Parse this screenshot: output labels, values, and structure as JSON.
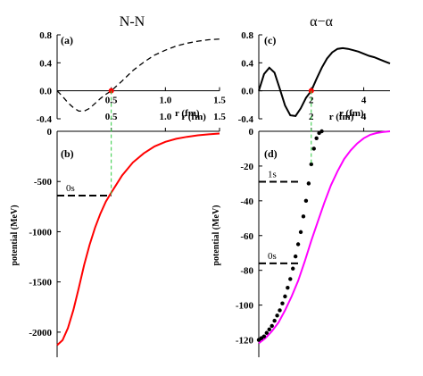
{
  "chart_data": [
    {
      "id": "a",
      "type": "line",
      "column_title": "N-N",
      "panel_label": "(a)",
      "xlabel": "r  (fm)",
      "ylabel": "",
      "xlim": [
        0,
        1.5
      ],
      "ylim": [
        -0.4,
        0.8
      ],
      "x_ticks": [
        0.5,
        1.0,
        1.5
      ],
      "x_tick_labels": [
        "0.5",
        "1.0",
        "1.5"
      ],
      "y_ticks": [
        -0.4,
        0.0,
        0.4,
        0.8
      ],
      "y_tick_labels": [
        "-0.4",
        "0.0",
        "0.4",
        "0.8"
      ],
      "series": [
        {
          "style": "dashed",
          "color": "#000000",
          "x": [
            0,
            0.05,
            0.1,
            0.15,
            0.2,
            0.25,
            0.3,
            0.35,
            0.4,
            0.45,
            0.5,
            0.6,
            0.7,
            0.8,
            0.9,
            1.0,
            1.1,
            1.2,
            1.3,
            1.4,
            1.5
          ],
          "y": [
            0.0,
            -0.08,
            -0.17,
            -0.24,
            -0.29,
            -0.29,
            -0.25,
            -0.18,
            -0.11,
            -0.05,
            0.0,
            0.14,
            0.29,
            0.41,
            0.51,
            0.58,
            0.64,
            0.68,
            0.71,
            0.73,
            0.74
          ]
        }
      ],
      "node_marker": {
        "x": 0.5,
        "y": 0.0,
        "color": "#ff0000"
      },
      "grid": false
    },
    {
      "id": "c",
      "type": "line",
      "column_title": "α−α",
      "panel_label": "(c)",
      "xlabel": "r  (fm)",
      "ylabel": "",
      "xlim": [
        0,
        5
      ],
      "ylim": [
        -0.4,
        0.8
      ],
      "x_ticks": [
        2,
        4
      ],
      "x_tick_labels": [
        "2",
        "4"
      ],
      "y_ticks": [
        -0.4,
        0.0,
        0.4,
        0.8
      ],
      "y_tick_labels": [
        "-0.4",
        "0.0",
        "0.4",
        "0.8"
      ],
      "series": [
        {
          "style": "solid",
          "color": "#000000",
          "x": [
            0,
            0.2,
            0.4,
            0.6,
            0.8,
            1.0,
            1.2,
            1.4,
            1.6,
            1.8,
            2.0,
            2.2,
            2.4,
            2.6,
            2.8,
            3.0,
            3.2,
            3.4,
            3.6,
            3.8,
            4.0,
            4.2,
            4.4,
            4.6,
            4.8,
            5.0
          ],
          "y": [
            0.0,
            0.24,
            0.33,
            0.26,
            0.03,
            -0.21,
            -0.35,
            -0.36,
            -0.25,
            -0.1,
            0.0,
            0.17,
            0.33,
            0.46,
            0.55,
            0.6,
            0.61,
            0.6,
            0.58,
            0.56,
            0.53,
            0.5,
            0.48,
            0.45,
            0.42,
            0.39
          ]
        }
      ],
      "node_marker": {
        "x": 2.0,
        "y": 0.0,
        "color": "#ff0000"
      },
      "grid": false
    },
    {
      "id": "b",
      "type": "line",
      "panel_label": "(b)",
      "xlabel": "",
      "ylabel": "potential  (MeV)",
      "xlim": [
        0,
        1.5
      ],
      "ylim": [
        -2250,
        0
      ],
      "x_ticks": [
        0.5,
        1.0,
        1.5
      ],
      "x_tick_labels": [
        "0.5",
        "1.0",
        "1.5"
      ],
      "y_ticks": [
        0,
        -500,
        -1000,
        -1500,
        -2000
      ],
      "y_tick_labels": [
        "0",
        "-500",
        "-1000",
        "-1500",
        "-2000"
      ],
      "x_top_labels": [
        "0.5",
        "1.0",
        "r  (fm)",
        "1.5"
      ],
      "series": [
        {
          "style": "solid",
          "color": "#ff0000",
          "x": [
            0,
            0.05,
            0.1,
            0.15,
            0.2,
            0.25,
            0.3,
            0.35,
            0.4,
            0.45,
            0.5,
            0.6,
            0.7,
            0.8,
            0.9,
            1.0,
            1.1,
            1.2,
            1.3,
            1.4,
            1.5
          ],
          "y": [
            -2130,
            -2080,
            -1960,
            -1780,
            -1560,
            -1330,
            -1130,
            -960,
            -820,
            -700,
            -610,
            -440,
            -310,
            -220,
            -150,
            -105,
            -75,
            -55,
            -40,
            -30,
            -22
          ]
        }
      ],
      "levels": [
        {
          "label": "0s",
          "energy": -640
        }
      ],
      "grid": false
    },
    {
      "id": "d",
      "type": "line",
      "panel_label": "(d)",
      "xlabel": "",
      "ylabel": "potential  (MeV)",
      "xlim": [
        0,
        5
      ],
      "ylim": [
        -130,
        0
      ],
      "x_ticks": [
        2,
        4
      ],
      "x_tick_labels": [
        "2",
        "4"
      ],
      "y_ticks": [
        0,
        -20,
        -40,
        -60,
        -80,
        -100,
        -120
      ],
      "y_tick_labels": [
        "0",
        "-20",
        "-40",
        "-60",
        "-80",
        "-100",
        "-120"
      ],
      "x_top_labels": [
        "2",
        "r  (fm)",
        "4"
      ],
      "series": [
        {
          "style": "solid",
          "color": "#ff00ff",
          "x": [
            0,
            0.25,
            0.5,
            0.75,
            1.0,
            1.25,
            1.5,
            1.75,
            2.0,
            2.25,
            2.5,
            2.75,
            3.0,
            3.25,
            3.5,
            3.75,
            4.0,
            4.25,
            4.5,
            4.75,
            5.0
          ],
          "y": [
            -122,
            -119,
            -115,
            -110,
            -103,
            -95,
            -86,
            -75,
            -63,
            -52,
            -41,
            -31,
            -23,
            -16,
            -11,
            -7,
            -4,
            -2,
            -1,
            -0.4,
            0
          ]
        },
        {
          "style": "dots",
          "color": "#000000",
          "x": [
            0.0,
            0.1,
            0.2,
            0.3,
            0.4,
            0.5,
            0.6,
            0.7,
            0.8,
            0.9,
            1.0,
            1.1,
            1.2,
            1.3,
            1.4,
            1.5,
            1.6,
            1.7,
            1.8,
            1.9,
            2.0,
            2.1,
            2.2,
            2.3,
            2.4
          ],
          "y": [
            -120,
            -119,
            -118,
            -116,
            -114,
            -112,
            -109,
            -106,
            -103,
            -99,
            -95,
            -90,
            -85,
            -79,
            -72,
            -65,
            -58,
            -49,
            -40,
            -30,
            -19,
            -10,
            -4,
            -1,
            0
          ]
        }
      ],
      "levels": [
        {
          "label": "1s",
          "energy": -29
        },
        {
          "label": "0s",
          "energy": -76
        }
      ],
      "grid": false
    }
  ]
}
